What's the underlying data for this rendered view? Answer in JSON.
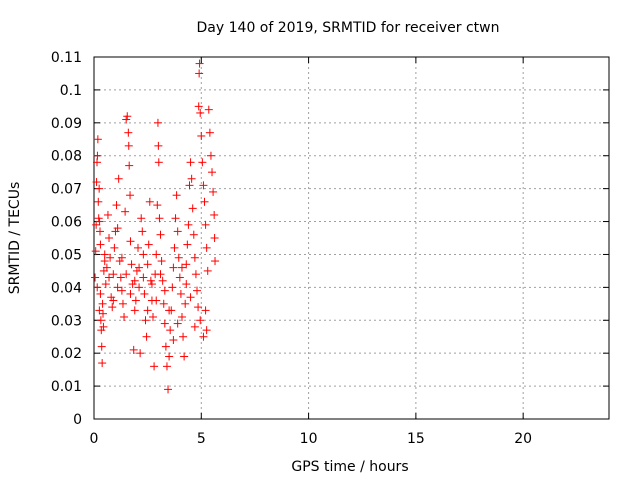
{
  "chart_data": {
    "type": "scatter",
    "title": "Day 140 of 2019, SRMTID for receiver ctwn",
    "xlabel": "GPS time / hours",
    "ylabel": "SRMTID / TECUs",
    "xlim": [
      0,
      24
    ],
    "ylim": [
      0,
      0.11
    ],
    "x_ticks": [
      "0",
      "5",
      "10",
      "15",
      "20"
    ],
    "y_ticks": [
      "0",
      "0.01",
      "0.02",
      "0.03",
      "0.04",
      "0.05",
      "0.06",
      "0.07",
      "0.08",
      "0.09",
      "0.1",
      "0.11"
    ],
    "grid": true,
    "marker": "plus",
    "color": "#ff0000",
    "series": [
      {
        "points": [
          [
            0.05,
            0.043
          ],
          [
            0.08,
            0.051
          ],
          [
            0.1,
            0.059
          ],
          [
            0.12,
            0.072
          ],
          [
            0.14,
            0.078
          ],
          [
            0.16,
            0.08
          ],
          [
            0.18,
            0.085
          ],
          [
            0.2,
            0.066
          ],
          [
            0.22,
            0.061
          ],
          [
            0.24,
            0.07
          ],
          [
            0.26,
            0.06
          ],
          [
            0.28,
            0.057
          ],
          [
            0.3,
            0.038
          ],
          [
            0.32,
            0.03
          ],
          [
            0.34,
            0.027
          ],
          [
            0.36,
            0.022
          ],
          [
            0.38,
            0.017
          ],
          [
            0.4,
            0.035
          ],
          [
            0.42,
            0.032
          ],
          [
            0.44,
            0.028
          ],
          [
            0.46,
            0.045
          ],
          [
            0.5,
            0.05
          ],
          [
            0.55,
            0.041
          ],
          [
            0.6,
            0.046
          ],
          [
            0.65,
            0.062
          ],
          [
            0.7,
            0.055
          ],
          [
            0.75,
            0.049
          ],
          [
            0.8,
            0.037
          ],
          [
            0.85,
            0.034
          ],
          [
            0.9,
            0.044
          ],
          [
            0.95,
            0.052
          ],
          [
            1.0,
            0.057
          ],
          [
            1.05,
            0.065
          ],
          [
            1.1,
            0.058
          ],
          [
            1.15,
            0.073
          ],
          [
            1.2,
            0.048
          ],
          [
            1.25,
            0.043
          ],
          [
            1.3,
            0.039
          ],
          [
            1.35,
            0.035
          ],
          [
            1.4,
            0.031
          ],
          [
            1.45,
            0.063
          ],
          [
            1.5,
            0.091
          ],
          [
            1.55,
            0.092
          ],
          [
            1.6,
            0.087
          ],
          [
            1.62,
            0.083
          ],
          [
            1.64,
            0.077
          ],
          [
            1.68,
            0.068
          ],
          [
            1.7,
            0.054
          ],
          [
            1.75,
            0.047
          ],
          [
            1.8,
            0.041
          ],
          [
            1.85,
            0.021
          ],
          [
            1.9,
            0.033
          ],
          [
            1.95,
            0.036
          ],
          [
            2.0,
            0.045
          ],
          [
            2.05,
            0.052
          ],
          [
            2.1,
            0.04
          ],
          [
            2.15,
            0.02
          ],
          [
            2.2,
            0.061
          ],
          [
            2.25,
            0.057
          ],
          [
            2.3,
            0.043
          ],
          [
            2.35,
            0.038
          ],
          [
            2.4,
            0.03
          ],
          [
            2.45,
            0.025
          ],
          [
            2.5,
            0.047
          ],
          [
            2.55,
            0.053
          ],
          [
            2.6,
            0.066
          ],
          [
            2.65,
            0.042
          ],
          [
            2.7,
            0.036
          ],
          [
            2.75,
            0.031
          ],
          [
            2.8,
            0.016
          ],
          [
            2.85,
            0.044
          ],
          [
            2.9,
            0.05
          ],
          [
            2.95,
            0.065
          ],
          [
            2.98,
            0.09
          ],
          [
            3.0,
            0.083
          ],
          [
            3.02,
            0.078
          ],
          [
            3.05,
            0.061
          ],
          [
            3.1,
            0.056
          ],
          [
            3.15,
            0.048
          ],
          [
            3.2,
            0.042
          ],
          [
            3.25,
            0.035
          ],
          [
            3.3,
            0.029
          ],
          [
            3.35,
            0.022
          ],
          [
            3.4,
            0.016
          ],
          [
            3.45,
            0.009
          ],
          [
            3.5,
            0.019
          ],
          [
            3.55,
            0.027
          ],
          [
            3.6,
            0.033
          ],
          [
            3.65,
            0.04
          ],
          [
            3.7,
            0.046
          ],
          [
            3.75,
            0.052
          ],
          [
            3.8,
            0.061
          ],
          [
            3.85,
            0.068
          ],
          [
            3.9,
            0.057
          ],
          [
            3.95,
            0.049
          ],
          [
            4.0,
            0.043
          ],
          [
            4.05,
            0.038
          ],
          [
            4.1,
            0.031
          ],
          [
            4.15,
            0.025
          ],
          [
            4.2,
            0.019
          ],
          [
            4.25,
            0.035
          ],
          [
            4.3,
            0.047
          ],
          [
            4.35,
            0.053
          ],
          [
            4.4,
            0.059
          ],
          [
            4.45,
            0.071
          ],
          [
            4.5,
            0.078
          ],
          [
            4.55,
            0.073
          ],
          [
            4.6,
            0.064
          ],
          [
            4.65,
            0.056
          ],
          [
            4.7,
            0.049
          ],
          [
            4.75,
            0.044
          ],
          [
            4.8,
            0.039
          ],
          [
            4.85,
            0.034
          ],
          [
            4.88,
            0.095
          ],
          [
            4.9,
            0.105
          ],
          [
            4.92,
            0.108
          ],
          [
            4.95,
            0.093
          ],
          [
            5.0,
            0.086
          ],
          [
            5.05,
            0.078
          ],
          [
            5.1,
            0.071
          ],
          [
            5.15,
            0.066
          ],
          [
            5.2,
            0.059
          ],
          [
            5.25,
            0.052
          ],
          [
            5.3,
            0.045
          ],
          [
            5.35,
            0.094
          ],
          [
            5.4,
            0.087
          ],
          [
            5.45,
            0.08
          ],
          [
            5.5,
            0.075
          ],
          [
            5.55,
            0.069
          ],
          [
            5.6,
            0.062
          ],
          [
            5.62,
            0.055
          ],
          [
            5.64,
            0.048
          ],
          [
            5.2,
            0.033
          ],
          [
            5.25,
            0.027
          ],
          [
            5.1,
            0.025
          ],
          [
            4.95,
            0.03
          ],
          [
            4.7,
            0.028
          ],
          [
            4.5,
            0.037
          ],
          [
            4.3,
            0.041
          ],
          [
            4.1,
            0.046
          ],
          [
            3.9,
            0.029
          ],
          [
            3.7,
            0.024
          ],
          [
            3.5,
            0.033
          ],
          [
            3.3,
            0.039
          ],
          [
            3.1,
            0.044
          ],
          [
            2.9,
            0.036
          ],
          [
            2.7,
            0.041
          ],
          [
            2.5,
            0.033
          ],
          [
            2.3,
            0.05
          ],
          [
            2.1,
            0.046
          ],
          [
            1.9,
            0.042
          ],
          [
            1.7,
            0.038
          ],
          [
            1.5,
            0.044
          ],
          [
            1.3,
            0.049
          ],
          [
            1.1,
            0.04
          ],
          [
            0.9,
            0.036
          ],
          [
            0.7,
            0.043
          ],
          [
            0.5,
            0.048
          ],
          [
            0.3,
            0.053
          ],
          [
            0.15,
            0.04
          ],
          [
            0.25,
            0.033
          ]
        ]
      }
    ]
  }
}
